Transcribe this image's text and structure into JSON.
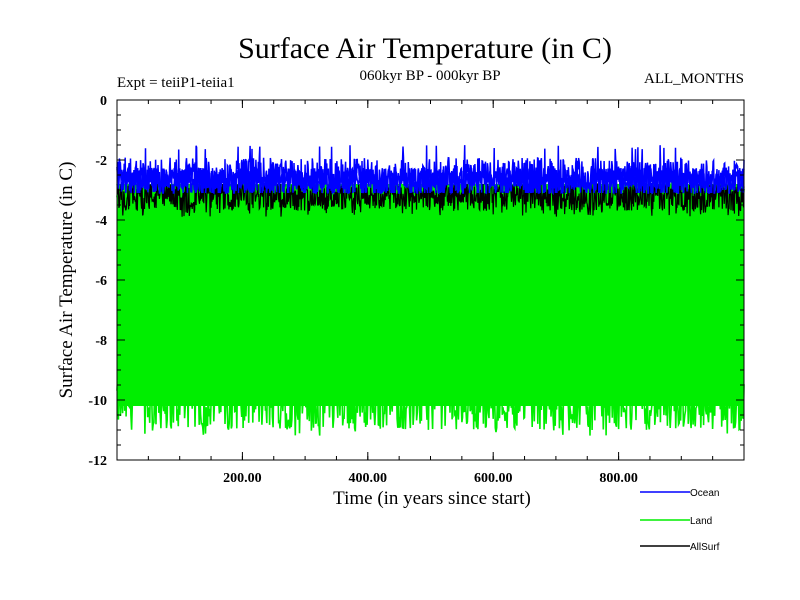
{
  "chart_data": {
    "type": "line",
    "title": "Surface Air Temperature (in C)",
    "subtitle": "060kyr BP - 000kyr BP",
    "experiment": "Expt = teiiP1-teiia1",
    "months": "ALL_MONTHS",
    "xlabel": "Time (in years since start)",
    "ylabel": "Surface Air Temperature (in C)",
    "xlim": [
      0,
      1000
    ],
    "ylim": [
      -12,
      0
    ],
    "x_ticks": [
      200,
      400,
      600,
      800
    ],
    "x_tick_labels": [
      "200.00",
      "400.00",
      "600.00",
      "800.00"
    ],
    "y_ticks": [
      0,
      -2,
      -4,
      -6,
      -8,
      -10,
      -12
    ],
    "y_tick_labels": [
      "0",
      "-2",
      "-4",
      "-6",
      "-8",
      "-10",
      "-12"
    ],
    "grid": false,
    "legend_position": "bottom-right",
    "series": [
      {
        "name": "Ocean",
        "color": "#0000ff",
        "mean": -2.6,
        "min": -3.1,
        "max": -1.5
      },
      {
        "name": "Land",
        "color": "#00ee00",
        "mean": -6.5,
        "min": -11.2,
        "max": -2.8
      },
      {
        "name": "AllSurf",
        "color": "#000000",
        "mean": -3.2,
        "min": -3.9,
        "max": -2.8
      }
    ]
  }
}
